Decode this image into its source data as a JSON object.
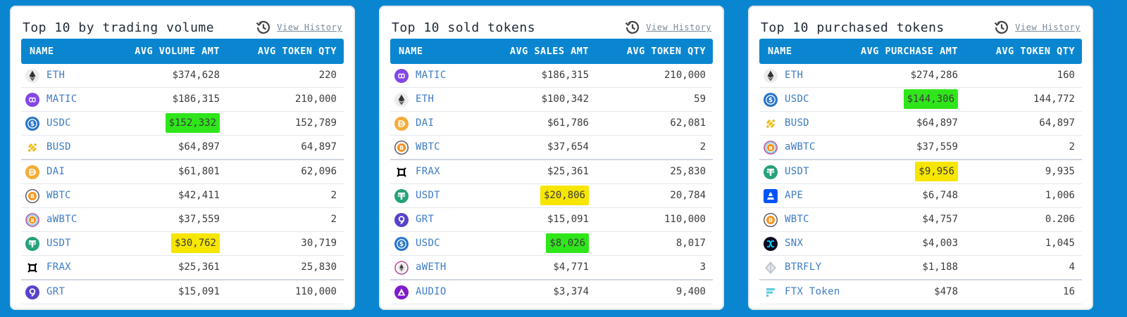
{
  "history_label": "View History",
  "panels": [
    {
      "title": "Top 10 by trading volume",
      "headers": [
        "NAME",
        "AVG VOLUME AMT",
        "AVG TOKEN QTY"
      ],
      "rows": [
        {
          "icon": "eth",
          "name": "ETH",
          "amt": "$374,628",
          "qty": "220",
          "hl": ""
        },
        {
          "icon": "matic",
          "name": "MATIC",
          "amt": "$186,315",
          "qty": "210,000",
          "hl": ""
        },
        {
          "icon": "usdc",
          "name": "USDC",
          "amt": "$152,332",
          "qty": "152,789",
          "hl": "green"
        },
        {
          "icon": "busd",
          "name": "BUSD",
          "amt": "$64,897",
          "qty": "64,897",
          "hl": ""
        },
        {
          "icon": "dai",
          "name": "DAI",
          "amt": "$61,801",
          "qty": "62,096",
          "hl": ""
        },
        {
          "icon": "wbtc",
          "name": "WBTC",
          "amt": "$42,411",
          "qty": "2",
          "hl": ""
        },
        {
          "icon": "awbtc",
          "name": "aWBTC",
          "amt": "$37,559",
          "qty": "2",
          "hl": ""
        },
        {
          "icon": "usdt",
          "name": "USDT",
          "amt": "$30,762",
          "qty": "30,719",
          "hl": "yellow"
        },
        {
          "icon": "frax",
          "name": "FRAX",
          "amt": "$25,361",
          "qty": "25,830",
          "hl": ""
        },
        {
          "icon": "grt",
          "name": "GRT",
          "amt": "$15,091",
          "qty": "110,000",
          "hl": ""
        }
      ]
    },
    {
      "title": "Top 10 sold tokens",
      "headers": [
        "NAME",
        "AVG SALES AMT",
        "AVG TOKEN QTY"
      ],
      "rows": [
        {
          "icon": "matic",
          "name": "MATIC",
          "amt": "$186,315",
          "qty": "210,000",
          "hl": ""
        },
        {
          "icon": "eth",
          "name": "ETH",
          "amt": "$100,342",
          "qty": "59",
          "hl": ""
        },
        {
          "icon": "dai",
          "name": "DAI",
          "amt": "$61,786",
          "qty": "62,081",
          "hl": ""
        },
        {
          "icon": "wbtc",
          "name": "WBTC",
          "amt": "$37,654",
          "qty": "2",
          "hl": ""
        },
        {
          "icon": "frax",
          "name": "FRAX",
          "amt": "$25,361",
          "qty": "25,830",
          "hl": ""
        },
        {
          "icon": "usdt",
          "name": "USDT",
          "amt": "$20,806",
          "qty": "20,784",
          "hl": "yellow"
        },
        {
          "icon": "grt",
          "name": "GRT",
          "amt": "$15,091",
          "qty": "110,000",
          "hl": ""
        },
        {
          "icon": "usdc",
          "name": "USDC",
          "amt": "$8,026",
          "qty": "8,017",
          "hl": "green"
        },
        {
          "icon": "aweth",
          "name": "aWETH",
          "amt": "$4,771",
          "qty": "3",
          "hl": ""
        },
        {
          "icon": "audio",
          "name": "AUDIO",
          "amt": "$3,374",
          "qty": "9,400",
          "hl": ""
        }
      ]
    },
    {
      "title": "Top 10 purchased tokens",
      "headers": [
        "NAME",
        "AVG PURCHASE AMT",
        "AVG TOKEN QTY"
      ],
      "rows": [
        {
          "icon": "eth",
          "name": "ETH",
          "amt": "$274,286",
          "qty": "160",
          "hl": ""
        },
        {
          "icon": "usdc",
          "name": "USDC",
          "amt": "$144,306",
          "qty": "144,772",
          "hl": "green"
        },
        {
          "icon": "busd",
          "name": "BUSD",
          "amt": "$64,897",
          "qty": "64,897",
          "hl": ""
        },
        {
          "icon": "awbtc",
          "name": "aWBTC",
          "amt": "$37,559",
          "qty": "2",
          "hl": ""
        },
        {
          "icon": "usdt",
          "name": "USDT",
          "amt": "$9,956",
          "qty": "9,935",
          "hl": "yellow"
        },
        {
          "icon": "ape",
          "name": "APE",
          "amt": "$6,748",
          "qty": "1,006",
          "hl": ""
        },
        {
          "icon": "wbtc",
          "name": "WBTC",
          "amt": "$4,757",
          "qty": "0.206",
          "hl": ""
        },
        {
          "icon": "snx",
          "name": "SNX",
          "amt": "$4,003",
          "qty": "1,045",
          "hl": ""
        },
        {
          "icon": "btrfly",
          "name": "BTRFLY",
          "amt": "$1,188",
          "qty": "4",
          "hl": ""
        },
        {
          "icon": "ftx",
          "name": "FTX Token",
          "amt": "$478",
          "qty": "16",
          "hl": ""
        }
      ]
    }
  ],
  "colors": {
    "accent": "#0a86d0",
    "highlight_green": "#2fe61b",
    "highlight_yellow": "#f7e600",
    "token_name": "#3d7bc4"
  }
}
